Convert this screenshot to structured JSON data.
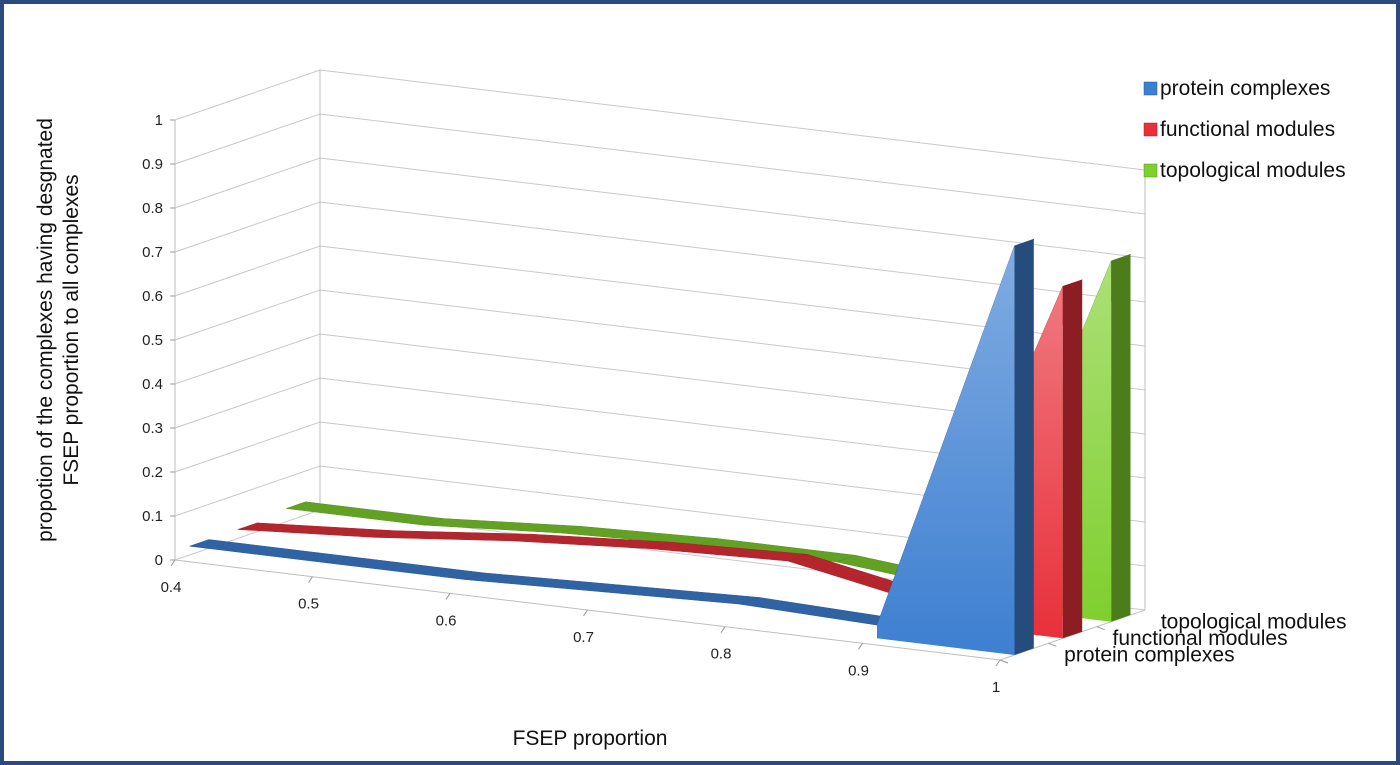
{
  "chart_data": {
    "type": "area",
    "title": "",
    "xlabel": "FSEP proportion",
    "ylabel_lines": [
      "propotion of the complexes having desgnated",
      "FSEP proportion to all complexes"
    ],
    "ylim": [
      0,
      1
    ],
    "y_ticks": [
      "0",
      "0.1",
      "0.2",
      "0.3",
      "0.4",
      "0.5",
      "0.6",
      "0.7",
      "0.8",
      "0.9",
      "1"
    ],
    "x": [
      0.4,
      0.5,
      0.6,
      0.7,
      0.8,
      0.9,
      1
    ],
    "x_tick_labels": [
      "0.4",
      "0.5",
      "0.6",
      "0.7",
      "0.8",
      "0.9",
      "1"
    ],
    "depth_labels": [
      "protein complexes",
      "functional modules",
      "topological modules"
    ],
    "grid": true,
    "legend_position": "top-right",
    "series": [
      {
        "name": "protein complexes",
        "color": "#3d7fd1",
        "values": [
          0.02,
          0.02,
          0.02,
          0.03,
          0.04,
          0.03,
          0.93
        ]
      },
      {
        "name": "functional modules",
        "color": "#e8303a",
        "values": [
          0.02,
          0.04,
          0.07,
          0.09,
          0.1,
          0.04,
          0.8
        ]
      },
      {
        "name": "topological modules",
        "color": "#7fcf2e",
        "values": [
          0.03,
          0.03,
          0.05,
          0.06,
          0.06,
          0.03,
          0.82
        ]
      }
    ]
  }
}
